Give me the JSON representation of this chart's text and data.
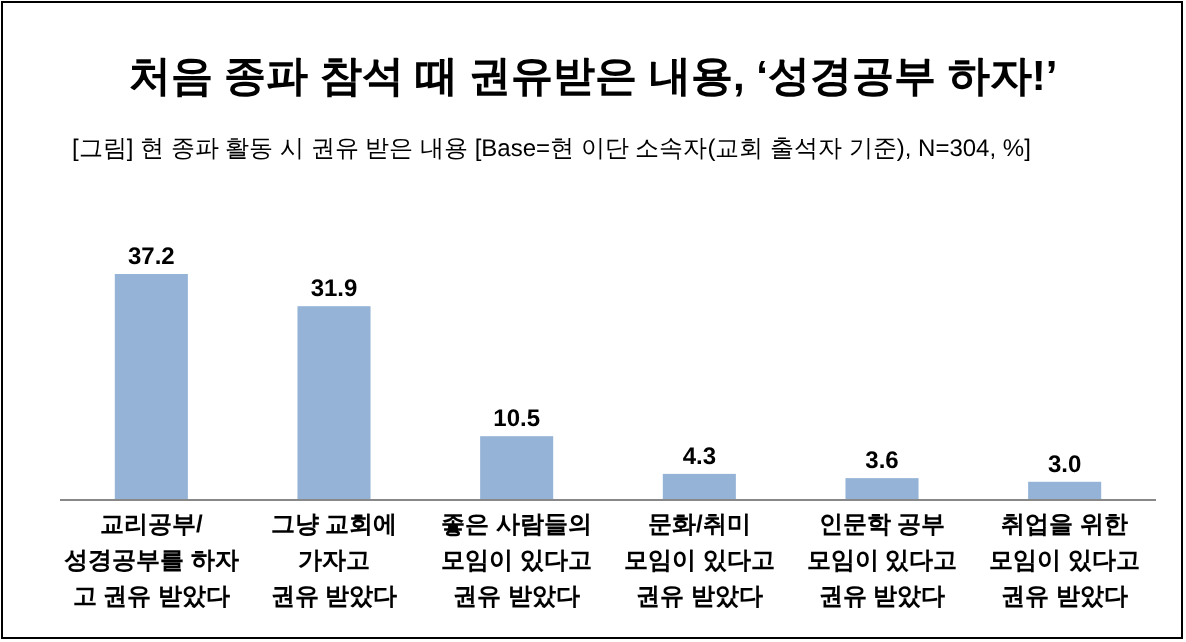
{
  "chart_data": {
    "type": "bar",
    "title": "처음 종파 참석 때 권유받은 내용, ‘성경공부 하자!’",
    "subtitle": "[그림] 현 종파 활동 시 권유 받은 내용 [Base=현 이단 소속자(교회 출석자 기준), N=304, %]",
    "categories": [
      "교리공부/\n성경공부를 하자\n고 권유 받았다",
      "그냥 교회에\n가자고\n권유 받았다",
      "좋은 사람들의\n모임이 있다고\n권유 받았다",
      "문화/취미\n모임이 있다고\n권유 받았다",
      "인문학 공부\n모임이 있다고\n권유 받았다",
      "취업을 위한\n모임이 있다고\n권유 받았다"
    ],
    "values": [
      37.2,
      31.9,
      10.5,
      4.3,
      3.6,
      3.0
    ],
    "value_labels": [
      "37.2",
      "31.9",
      "10.5",
      "4.3",
      "3.6",
      "3.0"
    ],
    "color": "#95b3d7"
  }
}
